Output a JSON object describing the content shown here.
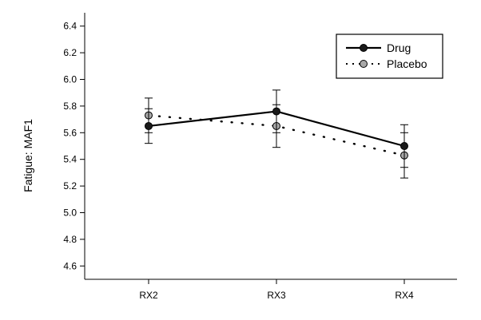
{
  "chart_data": {
    "type": "line",
    "title": "",
    "xlabel": "",
    "ylabel": "Fatigue: MAF1",
    "categories": [
      "RX2",
      "RX3",
      "RX4"
    ],
    "ylim": [
      4.5,
      6.5
    ],
    "yticks": [
      4.6,
      4.8,
      5.0,
      5.2,
      5.4,
      5.6,
      5.8,
      6.0,
      6.2,
      6.4
    ],
    "grid": false,
    "legend_position": "top-right",
    "series": [
      {
        "name": "Drug",
        "values": [
          5.65,
          5.76,
          5.5
        ],
        "error_low": [
          5.52,
          5.6,
          5.34
        ],
        "error_high": [
          5.78,
          5.92,
          5.66
        ],
        "line_style": "solid",
        "marker_color": "#1a1a1a",
        "line_color": "#000000"
      },
      {
        "name": "Placebo",
        "values": [
          5.73,
          5.65,
          5.43
        ],
        "error_low": [
          5.6,
          5.49,
          5.26
        ],
        "error_high": [
          5.86,
          5.81,
          5.6
        ],
        "line_style": "dotted",
        "marker_color": "#a8a8a8",
        "line_color": "#000000"
      }
    ]
  }
}
